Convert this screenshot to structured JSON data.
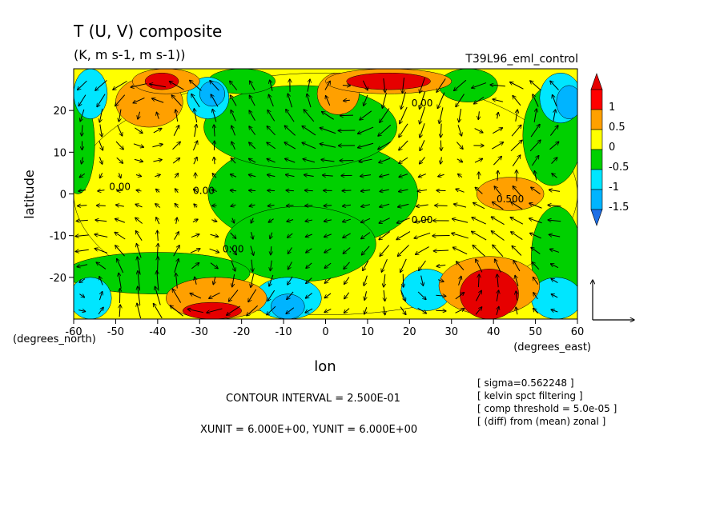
{
  "header": {
    "title": "T (U, V) composite",
    "subtitle": "(K, m s-1, m s-1))",
    "run_label": "T39L96_eml_control"
  },
  "footer": {
    "contour_interval": "CONTOUR INTERVAL = 2.500E-01",
    "units": "XUNIT = 6.000E+00, YUNIT = 6.000E+00",
    "notes": [
      "[ sigma=0.562248 ]",
      "[ kelvin spct filtering ]",
      "[ comp threshold = 5.0e-05 ]",
      "[ (diff) from (mean) zonal ]"
    ]
  },
  "chart_data": {
    "type": "heatmap",
    "title": "T (U, V) composite",
    "subtitle": "(K, m s-1, m s-1))",
    "xlabel": "lon",
    "ylabel": "latitude",
    "x_unit_label": "(degrees_east)",
    "y_unit_label": "(degrees_north)",
    "xlim": [
      -60,
      60
    ],
    "ylim": [
      -30,
      30
    ],
    "x_ticks": [
      -60,
      -50,
      -40,
      -30,
      -20,
      -10,
      0,
      10,
      20,
      30,
      40,
      50,
      60
    ],
    "x_tick_labels": [
      "-60",
      "-50",
      "-40",
      "-30",
      "-20",
      "-10",
      "0",
      "10",
      "20",
      "30",
      "40",
      "50",
      "60"
    ],
    "y_ticks": [
      -20,
      -10,
      0,
      10,
      20
    ],
    "y_tick_labels": [
      "-20",
      "-10",
      "0",
      "10",
      "20"
    ],
    "colorbar": {
      "levels": [
        -1.5,
        -1,
        -0.5,
        0,
        0.5,
        1
      ],
      "labels": [
        "-1.5",
        "-1",
        "-0.5",
        "0",
        "0.5",
        "1"
      ],
      "colors": [
        "#1e6fe6",
        "#00b4ff",
        "#00e6ff",
        "#00d000",
        "#ffff00",
        "#ffa000",
        "#ff0000",
        "#e60000"
      ]
    },
    "contour_labels": [
      {
        "text": "0.00",
        "lon": -49,
        "lat": 1
      },
      {
        "text": "0.00",
        "lon": -29,
        "lat": 0
      },
      {
        "text": "0.00",
        "lon": -22,
        "lat": -14
      },
      {
        "text": "0.00",
        "lon": 23,
        "lat": 21
      },
      {
        "text": "0.00",
        "lon": 23,
        "lat": -7
      },
      {
        "text": "0.500",
        "lon": 44,
        "lat": -2
      }
    ],
    "regions": [
      {
        "value": 0.25,
        "lon": 0,
        "lat": 0,
        "rx": 60,
        "ry": 29
      },
      {
        "value": -0.25,
        "lon": -3,
        "lat": 0,
        "rx": 25,
        "ry": 13
      },
      {
        "value": -0.25,
        "lon": -6,
        "lat": 16,
        "rx": 23,
        "ry": 10
      },
      {
        "value": -0.25,
        "lon": -6,
        "lat": -12,
        "rx": 18,
        "ry": 9
      },
      {
        "value": -0.25,
        "lon": -59,
        "lat": 12,
        "rx": 4,
        "ry": 12
      },
      {
        "value": -0.25,
        "lon": -40,
        "lat": -19,
        "rx": 22,
        "ry": 5
      },
      {
        "value": -0.25,
        "lon": 54,
        "lat": 14,
        "rx": 7,
        "ry": 12
      },
      {
        "value": -0.25,
        "lon": 55,
        "lat": -15,
        "rx": 6,
        "ry": 12
      },
      {
        "value": -0.25,
        "lon": 34,
        "lat": 26,
        "rx": 7,
        "ry": 4
      },
      {
        "value": -0.25,
        "lon": -20,
        "lat": 27,
        "rx": 8,
        "ry": 3
      },
      {
        "value": -0.75,
        "lon": -56,
        "lat": 24,
        "rx": 4,
        "ry": 6
      },
      {
        "value": -0.75,
        "lon": -28,
        "lat": 23,
        "rx": 5,
        "ry": 5
      },
      {
        "value": -0.75,
        "lon": 56,
        "lat": 23,
        "rx": 5,
        "ry": 6
      },
      {
        "value": -0.75,
        "lon": -9,
        "lat": -25,
        "rx": 8,
        "ry": 5
      },
      {
        "value": -0.75,
        "lon": 24,
        "lat": -23,
        "rx": 6,
        "ry": 5
      },
      {
        "value": -0.75,
        "lon": -56,
        "lat": -25,
        "rx": 5,
        "ry": 5
      },
      {
        "value": -0.75,
        "lon": 55,
        "lat": -25,
        "rx": 6,
        "ry": 5
      },
      {
        "value": -1.25,
        "lon": -27,
        "lat": 24,
        "rx": 3,
        "ry": 3
      },
      {
        "value": -1.25,
        "lon": -9,
        "lat": -27,
        "rx": 4,
        "ry": 3
      },
      {
        "value": -1.25,
        "lon": 58,
        "lat": 22,
        "rx": 3,
        "ry": 4
      },
      {
        "value": 0.75,
        "lon": -42,
        "lat": 22,
        "rx": 8,
        "ry": 6
      },
      {
        "value": 0.75,
        "lon": 3,
        "lat": 24,
        "rx": 5,
        "ry": 5
      },
      {
        "value": 0.75,
        "lon": 44,
        "lat": 0,
        "rx": 8,
        "ry": 4
      },
      {
        "value": 0.75,
        "lon": -26,
        "lat": -25,
        "rx": 12,
        "ry": 5
      },
      {
        "value": 0.75,
        "lon": 39,
        "lat": -22,
        "rx": 12,
        "ry": 7
      },
      {
        "value": 0.75,
        "lon": -38,
        "lat": 27,
        "rx": 8,
        "ry": 3
      },
      {
        "value": 0.75,
        "lon": 15,
        "lat": 27,
        "rx": 15,
        "ry": 3
      },
      {
        "value": 1.25,
        "lon": -39,
        "lat": 27,
        "rx": 4,
        "ry": 2
      },
      {
        "value": 1.25,
        "lon": 15,
        "lat": 27,
        "rx": 10,
        "ry": 2
      },
      {
        "value": 1.25,
        "lon": -27,
        "lat": -28,
        "rx": 7,
        "ry": 2
      },
      {
        "value": 1.25,
        "lon": 39,
        "lat": -24,
        "rx": 7,
        "ry": 6
      }
    ],
    "vortices": [
      {
        "lon": -42,
        "lat": 20,
        "sense": 1,
        "strength": 1.0
      },
      {
        "lon": 5,
        "lat": 22,
        "sense": -1,
        "strength": 1.0
      },
      {
        "lon": 40,
        "lat": 20,
        "sense": 1,
        "strength": 0.9
      },
      {
        "lon": -30,
        "lat": -22,
        "sense": -1,
        "strength": 1.0
      },
      {
        "lon": 28,
        "lat": -18,
        "sense": 1,
        "strength": 1.0
      },
      {
        "lon": -55,
        "lat": -20,
        "sense": 1,
        "strength": 0.7
      },
      {
        "lon": 55,
        "lat": 5,
        "sense": -1,
        "strength": 0.6
      }
    ],
    "reference_vector": {
      "u": 6.0,
      "v": 6.0
    }
  }
}
